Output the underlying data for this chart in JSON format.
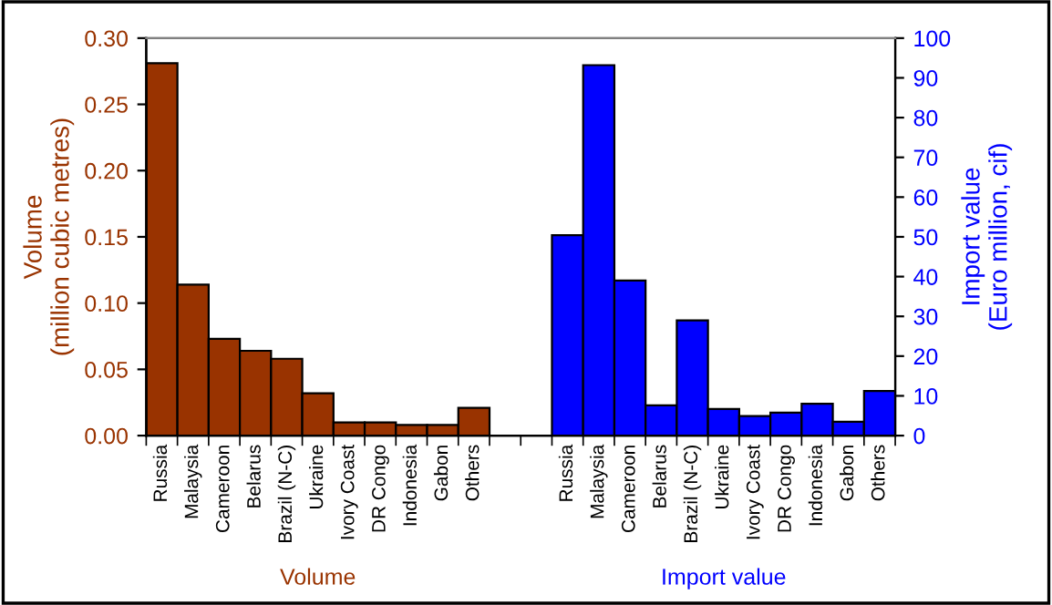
{
  "chart_data": {
    "type": "bar",
    "categories": [
      "Russia",
      "Malaysia",
      "Cameroon",
      "Belarus",
      "Brazil (N-C)",
      "Ukraine",
      "Ivory Coast",
      "DR Congo",
      "Indonesia",
      "Gabon",
      "Others",
      null,
      null,
      "Russia",
      "Malaysia",
      "Cameroon",
      "Belarus",
      "Brazil (N-C)",
      "Ukraine",
      "Ivory Coast",
      "DR Congo",
      "Indonesia",
      "Gabon",
      "Others"
    ],
    "series": [
      {
        "color": "#993300",
        "values": [
          0.281,
          0.114,
          0.073,
          0.064,
          0.058,
          0.032,
          0.01,
          0.01,
          0.008,
          0.008,
          0.021,
          null,
          null,
          null,
          null,
          null,
          null,
          null,
          null,
          null,
          null,
          null,
          null,
          null
        ]
      },
      {
        "color": "#0000ff",
        "axis": "y2",
        "values": [
          null,
          null,
          null,
          null,
          null,
          null,
          null,
          null,
          null,
          null,
          null,
          null,
          null,
          50.4,
          93.2,
          39,
          7.6,
          29,
          6.7,
          4.9,
          5.8,
          8,
          3.5,
          11.2
        ]
      }
    ],
    "ylabel": "Volume\n(million cubic metres)",
    "y2label": "Import value\n(Euro million, cif)",
    "ylim": [
      0,
      0.3
    ],
    "yticks": [
      {
        "value": 0,
        "label": "0.00"
      },
      {
        "value": 0.05,
        "label": "0.05"
      },
      {
        "value": 0.1,
        "label": "0.10"
      },
      {
        "value": 0.15,
        "label": "0.15"
      },
      {
        "value": 0.2,
        "label": "0.20"
      },
      {
        "value": 0.25,
        "label": "0.25"
      },
      {
        "value": 0.3,
        "label": "0.30"
      }
    ],
    "y2lim": [
      0,
      100
    ],
    "y2ticks": [
      0,
      10,
      20,
      30,
      40,
      50,
      60,
      70,
      80,
      90,
      100
    ],
    "annotations": [
      "Volume",
      "Import value"
    ],
    "grid": false,
    "legend": false
  }
}
